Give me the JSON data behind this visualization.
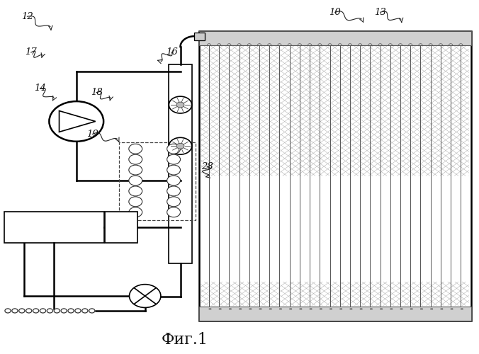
{
  "title": "Фиг.1",
  "bg_color": "#ffffff",
  "line_color": "#000000",
  "fig_width": 6.76,
  "fig_height": 5.0,
  "dpi": 100
}
